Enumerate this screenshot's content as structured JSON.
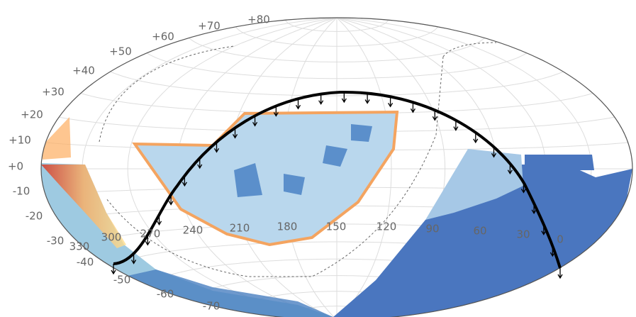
{
  "map": {
    "dec_labels": [
      "+80",
      "+70",
      "+60",
      "+50",
      "+40",
      "+30",
      "+20",
      "+10",
      "+0",
      "-10",
      "-20",
      "-30",
      "-40",
      "-50",
      "-60",
      "-70"
    ],
    "ra_labels": [
      "330",
      "300",
      "270",
      "240",
      "210",
      "180",
      "150",
      "120",
      "90",
      "60",
      "30",
      "0"
    ]
  }
}
